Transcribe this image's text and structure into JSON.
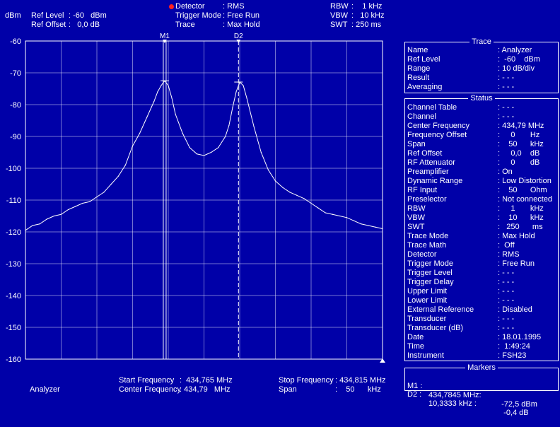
{
  "header": {
    "unit": "dBm",
    "ref_level_label": "Ref Level",
    "ref_level_value": ": -60   dBm",
    "ref_offset_label": "Ref Offset",
    "ref_offset_value": ":   0,0 dB",
    "detector_label": "Detector",
    "detector_value": ": RMS",
    "trigger_mode_label": "Trigger Mode",
    "trigger_mode_value": ": Free Run",
    "trace_label": "Trace",
    "trace_value": ": Max Hold",
    "rbw_label": "RBW",
    "rbw_value": ":    1 kHz",
    "vbw_label": "VBW",
    "vbw_value": ":   10 kHz",
    "swt_label": "SWT",
    "swt_value": ": 250 ms"
  },
  "plot": {
    "y_ticks": [
      "-60",
      "-70",
      "-80",
      "-90",
      "-100",
      "-110",
      "-120",
      "-130",
      "-140",
      "-150",
      "-160"
    ],
    "marker1_label": "M1",
    "marker2_label": "D2"
  },
  "footer": {
    "mode": "Analyzer",
    "start_label": "Start Frequency",
    "start_value": ":  434,765 MHz",
    "center_label": "Center Frequency",
    "center_value": ": 434,79   MHz",
    "stop_label": "Stop Frequency",
    "stop_value": ": 434,815 MHz",
    "span_label": "Span",
    "span_value": ":    50      kHz"
  },
  "trace_panel": {
    "title": "Trace",
    "rows": [
      {
        "k": "Name",
        "v": ": Analyzer"
      },
      {
        "k": "Ref Level",
        "v": ":  -60    dBm"
      },
      {
        "k": "Range",
        "v": ": 10 dB/div"
      },
      {
        "k": "Result",
        "v": ": - - -"
      },
      {
        "k": "Averaging",
        "v": ": - - -"
      }
    ]
  },
  "status_panel": {
    "title": "Status",
    "rows": [
      {
        "k": "Channel Table",
        "v": ": - - -"
      },
      {
        "k": "Channel",
        "v": ": - - -"
      },
      {
        "k": "Center Frequency",
        "v": ": 434,79 MHz"
      },
      {
        "k": "Frequency Offset",
        "v": ":     0       Hz"
      },
      {
        "k": "Span",
        "v": ":    50      kHz"
      },
      {
        "k": "Ref Offset",
        "v": ":     0,0    dB"
      },
      {
        "k": "RF Attenuator",
        "v": ":     0       dB"
      },
      {
        "k": "Preamplifier",
        "v": ": On"
      },
      {
        "k": "Dynamic Range",
        "v": ": Low Distortion"
      },
      {
        "k": "RF Input",
        "v": ":    50      Ohm"
      },
      {
        "k": "Preselector",
        "v": ": Not connected"
      },
      {
        "k": "RBW",
        "v": ":     1       kHz"
      },
      {
        "k": "VBW",
        "v": ":    10      kHz"
      },
      {
        "k": "SWT",
        "v": ":   250      ms"
      },
      {
        "k": "Trace Mode",
        "v": ": Max Hold"
      },
      {
        "k": "Trace Math",
        "v": ":  Off"
      },
      {
        "k": "Detector",
        "v": ": RMS"
      },
      {
        "k": "Trigger Mode",
        "v": ": Free Run"
      },
      {
        "k": "Trigger Level",
        "v": ": - - -"
      },
      {
        "k": "Trigger Delay",
        "v": ": - - -"
      },
      {
        "k": "Upper Limit",
        "v": ": - - -"
      },
      {
        "k": "Lower Limit",
        "v": ": - - -"
      },
      {
        "k": "External Reference",
        "v": ": Disabled"
      },
      {
        "k": "Transducer",
        "v": ": - - -"
      },
      {
        "k": "Transducer (dB)",
        "v": ": - - -"
      },
      {
        "k": "Date",
        "v": ": 18.01.1995"
      },
      {
        "k": "Time",
        "v": ":  1:49:24"
      },
      {
        "k": "Instrument",
        "v": ": FSH23"
      }
    ]
  },
  "markers_panel": {
    "title": "Markers",
    "m1_label": "M1 :",
    "m1_freq": "434,7845 MHz:",
    "m1_level": "  -72,5 dBm",
    "d2_label": "D2 :",
    "d2_freq": "10,3333 kHz :",
    "d2_level": "   -0,4 dB"
  },
  "colors": {
    "background": "#0000a8",
    "foreground": "#ffffff",
    "grid": "#ffffff",
    "detector_dot": "#ff2020"
  },
  "chart_data": {
    "type": "line",
    "xlim": [
      434.765,
      434.815
    ],
    "ylim": [
      -160,
      -60
    ],
    "x_unit": "MHz",
    "y_unit": "dBm",
    "grid": true,
    "markers": [
      {
        "name": "M1",
        "x": 434.7845,
        "y": -72.5
      },
      {
        "name": "D2",
        "x": 434.79483,
        "y": -72.9
      }
    ],
    "series": [
      {
        "x": [
          434.765,
          434.766,
          434.767,
          434.768,
          434.769,
          434.77,
          434.771,
          434.772,
          434.773,
          434.774,
          434.775,
          434.776,
          434.777,
          434.778,
          434.779,
          434.78,
          434.781,
          434.782,
          434.783,
          434.7835,
          434.784,
          434.7845,
          434.785,
          434.7855,
          434.786,
          434.787,
          434.788,
          434.789,
          434.79,
          434.791,
          434.792,
          434.793,
          434.7935,
          434.794,
          434.7945,
          434.795,
          434.7955,
          434.796,
          434.797,
          434.798,
          434.799,
          434.8,
          434.801,
          434.802,
          434.803,
          434.804,
          434.805,
          434.806,
          434.807,
          434.808,
          434.809,
          434.81,
          434.811,
          434.812,
          434.813,
          434.814,
          434.815
        ],
        "values": [
          -119.5,
          -118,
          -117.5,
          -116,
          -115,
          -114.5,
          -113,
          -112,
          -111,
          -110.5,
          -109,
          -107.5,
          -105,
          -102.5,
          -99,
          -93,
          -89,
          -84,
          -79,
          -76,
          -74,
          -72.5,
          -74,
          -78,
          -83,
          -89,
          -93.5,
          -95.5,
          -96,
          -95,
          -93.5,
          -90,
          -86.5,
          -81,
          -76,
          -72.9,
          -74,
          -78,
          -87,
          -95,
          -100.5,
          -104,
          -106,
          -107.5,
          -108.5,
          -109.5,
          -111,
          -112.5,
          -114,
          -114.5,
          -115,
          -115.5,
          -116.5,
          -117.5,
          -118,
          -118.5,
          -119
        ]
      }
    ]
  }
}
